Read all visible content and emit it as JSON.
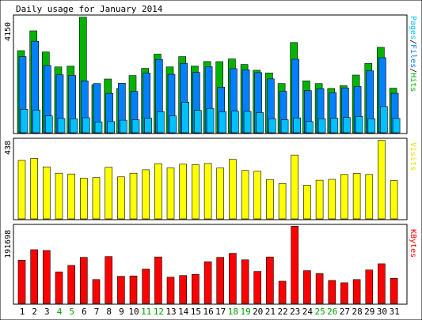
{
  "chart_data": [
    {
      "type": "bar",
      "title": "Daily usage for January 2014",
      "ylabel_max": "4150",
      "legend": [
        "Pages",
        "/",
        "Files",
        "/",
        "Hits"
      ],
      "ylim": [
        0,
        4150
      ],
      "categories": [
        "1",
        "2",
        "3",
        "4",
        "5",
        "6",
        "7",
        "8",
        "9",
        "10",
        "11",
        "12",
        "13",
        "14",
        "15",
        "16",
        "17",
        "18",
        "19",
        "20",
        "21",
        "22",
        "23",
        "24",
        "25",
        "26",
        "27",
        "28",
        "29",
        "30",
        "31"
      ],
      "series": [
        {
          "name": "Hits",
          "values": [
            2932,
            3641,
            2885,
            2352,
            2379,
            4130,
            1715,
            1920,
            1584,
            2043,
            2299,
            2810,
            2352,
            2721,
            2382,
            2544,
            2542,
            2637,
            2440,
            2234,
            2137,
            1760,
            3223,
            1852,
            1760,
            1584,
            1680,
            2060,
            2478,
            3051,
            1592
          ]
        },
        {
          "name": "Files",
          "values": [
            2722,
            3269,
            2405,
            2069,
            2043,
            1856,
            1760,
            1407,
            1768,
            1477,
            2135,
            2619,
            2087,
            2478,
            2153,
            2361,
            1628,
            2290,
            2246,
            2149,
            1924,
            1478,
            2625,
            1504,
            1577,
            1431,
            1600,
            1654,
            2212,
            2682,
            1410
          ]
        },
        {
          "name": "Pages",
          "values": [
            837,
            813,
            600,
            512,
            500,
            535,
            386,
            401,
            450,
            460,
            520,
            752,
            600,
            1093,
            800,
            870,
            750,
            770,
            762,
            720,
            500,
            464,
            531,
            400,
            500,
            520,
            545,
            581,
            500,
            935,
            515
          ]
        }
      ]
    },
    {
      "type": "bar",
      "ylabel_max": "438",
      "legend": [
        "Visits"
      ],
      "ylim": [
        0,
        438
      ],
      "categories": [
        "1",
        "2",
        "3",
        "4",
        "5",
        "6",
        "7",
        "8",
        "9",
        "10",
        "11",
        "12",
        "13",
        "14",
        "15",
        "16",
        "17",
        "18",
        "19",
        "20",
        "21",
        "22",
        "23",
        "24",
        "25",
        "26",
        "27",
        "28",
        "29",
        "30",
        "31"
      ],
      "series": [
        {
          "name": "Visits",
          "values": [
            324,
            335,
            288,
            253,
            249,
            226,
            229,
            286,
            233,
            253,
            272,
            306,
            283,
            303,
            301,
            307,
            282,
            330,
            268,
            264,
            218,
            196,
            354,
            186,
            214,
            219,
            246,
            252,
            246,
            435,
            212
          ]
        }
      ]
    },
    {
      "type": "bar",
      "ylabel_max": "191698",
      "legend": [
        "KBytes"
      ],
      "ylim": [
        0,
        191698
      ],
      "categories": [
        "1",
        "2",
        "3",
        "4",
        "5",
        "6",
        "7",
        "8",
        "9",
        "10",
        "11",
        "12",
        "13",
        "14",
        "15",
        "16",
        "17",
        "18",
        "19",
        "20",
        "21",
        "22",
        "23",
        "24",
        "25",
        "26",
        "27",
        "28",
        "29",
        "30",
        "31"
      ],
      "series": [
        {
          "name": "KBytes",
          "values": [
            107000,
            133000,
            131000,
            78000,
            94000,
            114000,
            59000,
            116000,
            67000,
            68000,
            85000,
            115000,
            65000,
            69000,
            72000,
            103000,
            114000,
            124000,
            108000,
            79000,
            115000,
            55000,
            191000,
            81000,
            74000,
            57000,
            51000,
            59000,
            83000,
            98000,
            62000
          ]
        }
      ]
    }
  ],
  "weekend_days": [
    "4",
    "5",
    "11",
    "12",
    "18",
    "19",
    "25",
    "26"
  ],
  "colors": {
    "hits": "#00b300",
    "files": "#0080ff",
    "pages": "#00c0ff",
    "visits": "#ffff00",
    "kbytes": "#ff0000",
    "weekday_label": "#000000",
    "weekend_label": "#00a000",
    "panel_bg": "#ffffff",
    "frame": "#000000"
  }
}
